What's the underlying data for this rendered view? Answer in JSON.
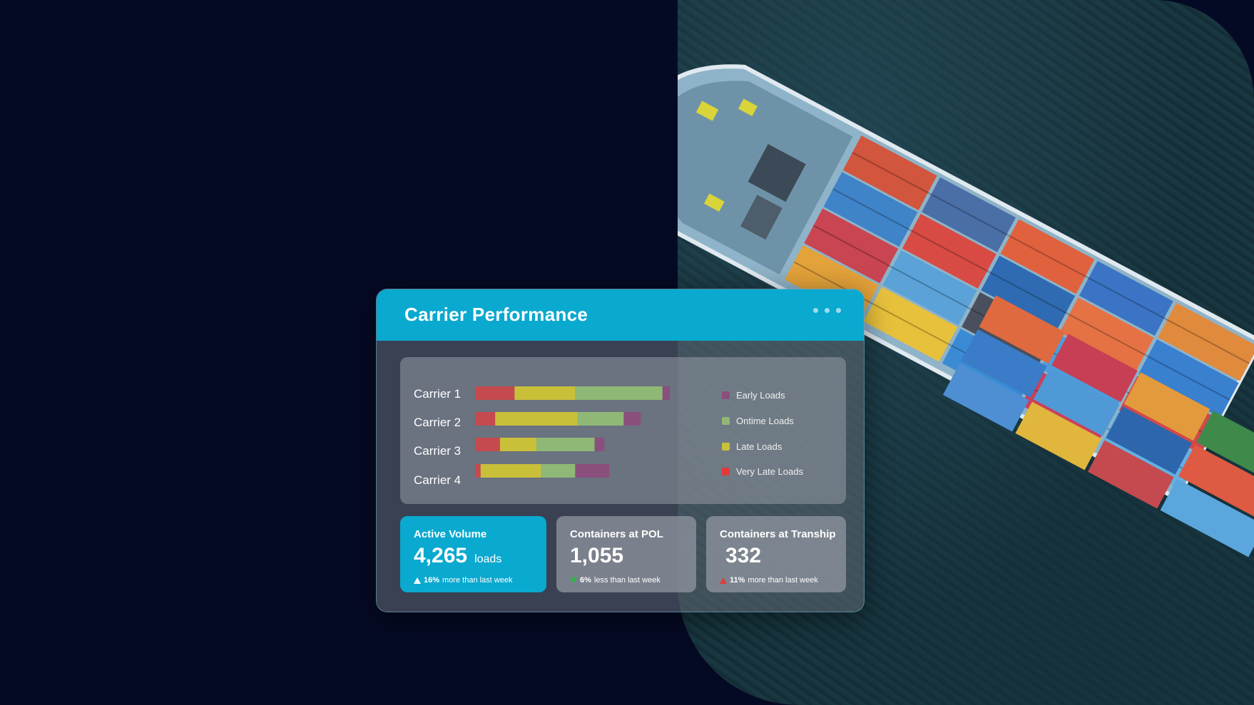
{
  "colors": {
    "accent": "#0aa9cf",
    "early": "#8a4f7d",
    "ontime": "#8fb876",
    "late": "#c9c03a",
    "very_late": "#c44a4f"
  },
  "card": {
    "title": "Carrier Performance",
    "menu_icon": "more-horizontal-icon"
  },
  "legend": [
    {
      "label": "Early Loads",
      "color": "#8a4f7d"
    },
    {
      "label": "Ontime Loads",
      "color": "#8fb876"
    },
    {
      "label": "Late Loads",
      "color": "#c9c03a"
    },
    {
      "label": "Very Late Loads",
      "color": "#e03a3a"
    }
  ],
  "chart_data": {
    "type": "bar",
    "orientation": "horizontal",
    "stacked": true,
    "categories": [
      "Carrier 1",
      "Carrier 2",
      "Carrier 3",
      "Carrier 4"
    ],
    "series": [
      {
        "name": "Very Late Loads",
        "values": [
          16,
          8,
          10,
          2
        ]
      },
      {
        "name": "Late Loads",
        "values": [
          25,
          34,
          15,
          25
        ]
      },
      {
        "name": "Ontime Loads",
        "values": [
          36,
          19,
          24,
          14
        ]
      },
      {
        "name": "Early Loads",
        "values": [
          3,
          7,
          4,
          14
        ]
      }
    ],
    "legend_position": "right",
    "grid": false
  },
  "stats": [
    {
      "title": "Active Volume",
      "value": "4,265",
      "unit": "loads",
      "delta_value": "16%",
      "delta_text": "more than last week",
      "direction": "up"
    },
    {
      "title": "Containers at POL",
      "value": "1,055",
      "unit": "",
      "delta_value": "6%",
      "delta_text": "less than last week",
      "direction": "down"
    },
    {
      "title": "Containers at Tranship",
      "value": "332",
      "unit": "",
      "delta_value": "11%",
      "delta_text": "more than last week",
      "direction": "up"
    }
  ]
}
